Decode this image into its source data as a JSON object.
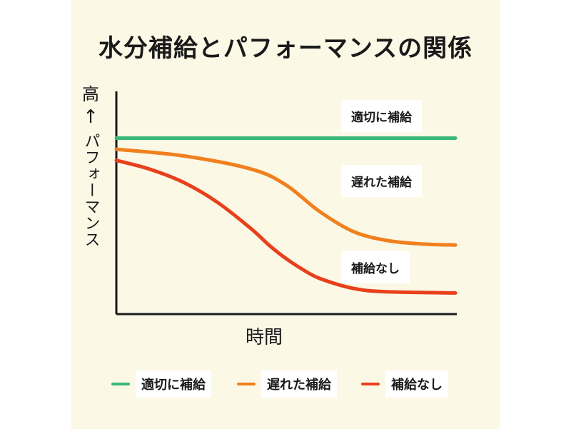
{
  "title": "水分補給とパフォーマンスの関係",
  "colors": {
    "background": "#fbf8e6",
    "proper": "#3cb878",
    "late": "#f0801e",
    "none": "#e8401c"
  },
  "chart_data": {
    "type": "line",
    "title": "水分補給とパフォーマンスの関係",
    "xlabel": "時間",
    "ylabel_high": "高",
    "ylabel_arrow": "↑",
    "ylabel": "パフォーマンス",
    "x_units": "relative time (0–10)",
    "y_units": "relative performance (0–10)",
    "xlim": [
      0,
      10
    ],
    "ylim": [
      0,
      10
    ],
    "grid": false,
    "legend_position": "bottom",
    "series": [
      {
        "name": "適切に補給",
        "color": "#3cb878",
        "x": [
          0,
          10
        ],
        "y": [
          7.9,
          7.9
        ]
      },
      {
        "name": "遅れた補給",
        "color": "#f0801e",
        "x": [
          0,
          2,
          4,
          5,
          6,
          7,
          8,
          9,
          10
        ],
        "y": [
          7.4,
          7.1,
          6.5,
          5.8,
          4.6,
          3.7,
          3.3,
          3.15,
          3.1
        ]
      },
      {
        "name": "補給なし",
        "color": "#e8401c",
        "x": [
          0,
          1,
          2,
          3,
          4,
          4.5,
          5,
          5.5,
          6,
          7,
          8,
          10
        ],
        "y": [
          6.9,
          6.5,
          5.9,
          5.0,
          3.8,
          3.1,
          2.5,
          2.0,
          1.6,
          1.15,
          1.0,
          0.95
        ]
      }
    ]
  },
  "tags": [
    "適切に補給",
    "遅れた補給",
    "補給なし"
  ],
  "legend": [
    {
      "label": "適切に補給"
    },
    {
      "label": "遅れた補給"
    },
    {
      "label": "補給なし"
    }
  ]
}
